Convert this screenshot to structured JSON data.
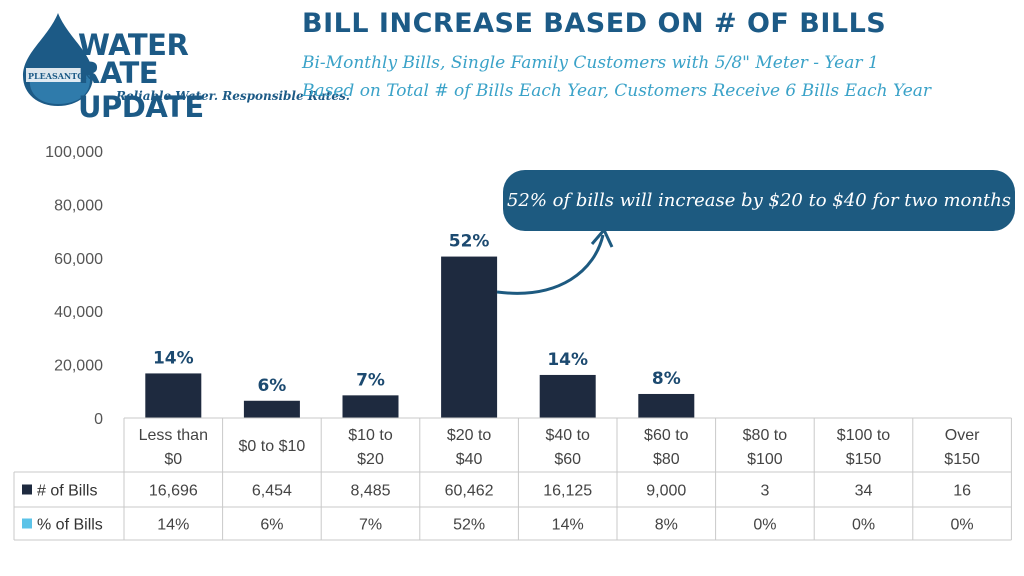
{
  "logo": {
    "line1": "WATER",
    "line2": "RATE UPDATE",
    "tagline": "Reliable Water. Responsible Rates.",
    "city": "PLEASANTON"
  },
  "title": "BILL INCREASE BASED ON # OF BILLS",
  "subtitle1": "Bi-Monthly Bills, Single Family Customers with 5/8\" Meter - Year 1",
  "subtitle2": "Based on Total # of Bills Each Year, Customers Receive 6 Bills Each Year",
  "callout": "52% of bills will increase by $20 to $40 for two months",
  "colors": {
    "brand": "#1c5a86",
    "bar": "#1e2a3f",
    "accent": "#3aa2c8",
    "pct_marker": "#5bc3e8"
  },
  "chart_data": {
    "type": "bar",
    "title": "BILL INCREASE BASED ON # OF BILLS",
    "xlabel": "",
    "ylabel": "",
    "ylim": [
      0,
      100000
    ],
    "yticks": [
      "100,000",
      "80,000",
      "60,000",
      "40,000",
      "20,000",
      "0"
    ],
    "categories": [
      [
        "Less than",
        "$0"
      ],
      [
        "$0 to $10"
      ],
      [
        "$10 to",
        "$20"
      ],
      [
        "$20 to",
        "$40"
      ],
      [
        "$40 to",
        "$60"
      ],
      [
        "$60 to",
        "$80"
      ],
      [
        "$80 to",
        "$100"
      ],
      [
        "$100 to",
        "$150"
      ],
      [
        "Over",
        "$150"
      ]
    ],
    "series": [
      {
        "name": "# of Bills",
        "values": [
          16696,
          6454,
          8485,
          60462,
          16125,
          9000,
          3,
          34,
          16
        ],
        "display": [
          "16,696",
          "6,454",
          "8,485",
          "60,462",
          "16,125",
          "9,000",
          "3",
          "34",
          "16"
        ]
      },
      {
        "name": "% of Bills",
        "values": [
          14,
          6,
          7,
          52,
          14,
          8,
          0,
          0,
          0
        ],
        "display": [
          "14%",
          "6%",
          "7%",
          "52%",
          "14%",
          "8%",
          "0%",
          "0%",
          "0%"
        ]
      }
    ],
    "data_labels": [
      "14%",
      "6%",
      "7%",
      "52%",
      "14%",
      "8%",
      "",
      "",
      ""
    ],
    "grid": false
  }
}
